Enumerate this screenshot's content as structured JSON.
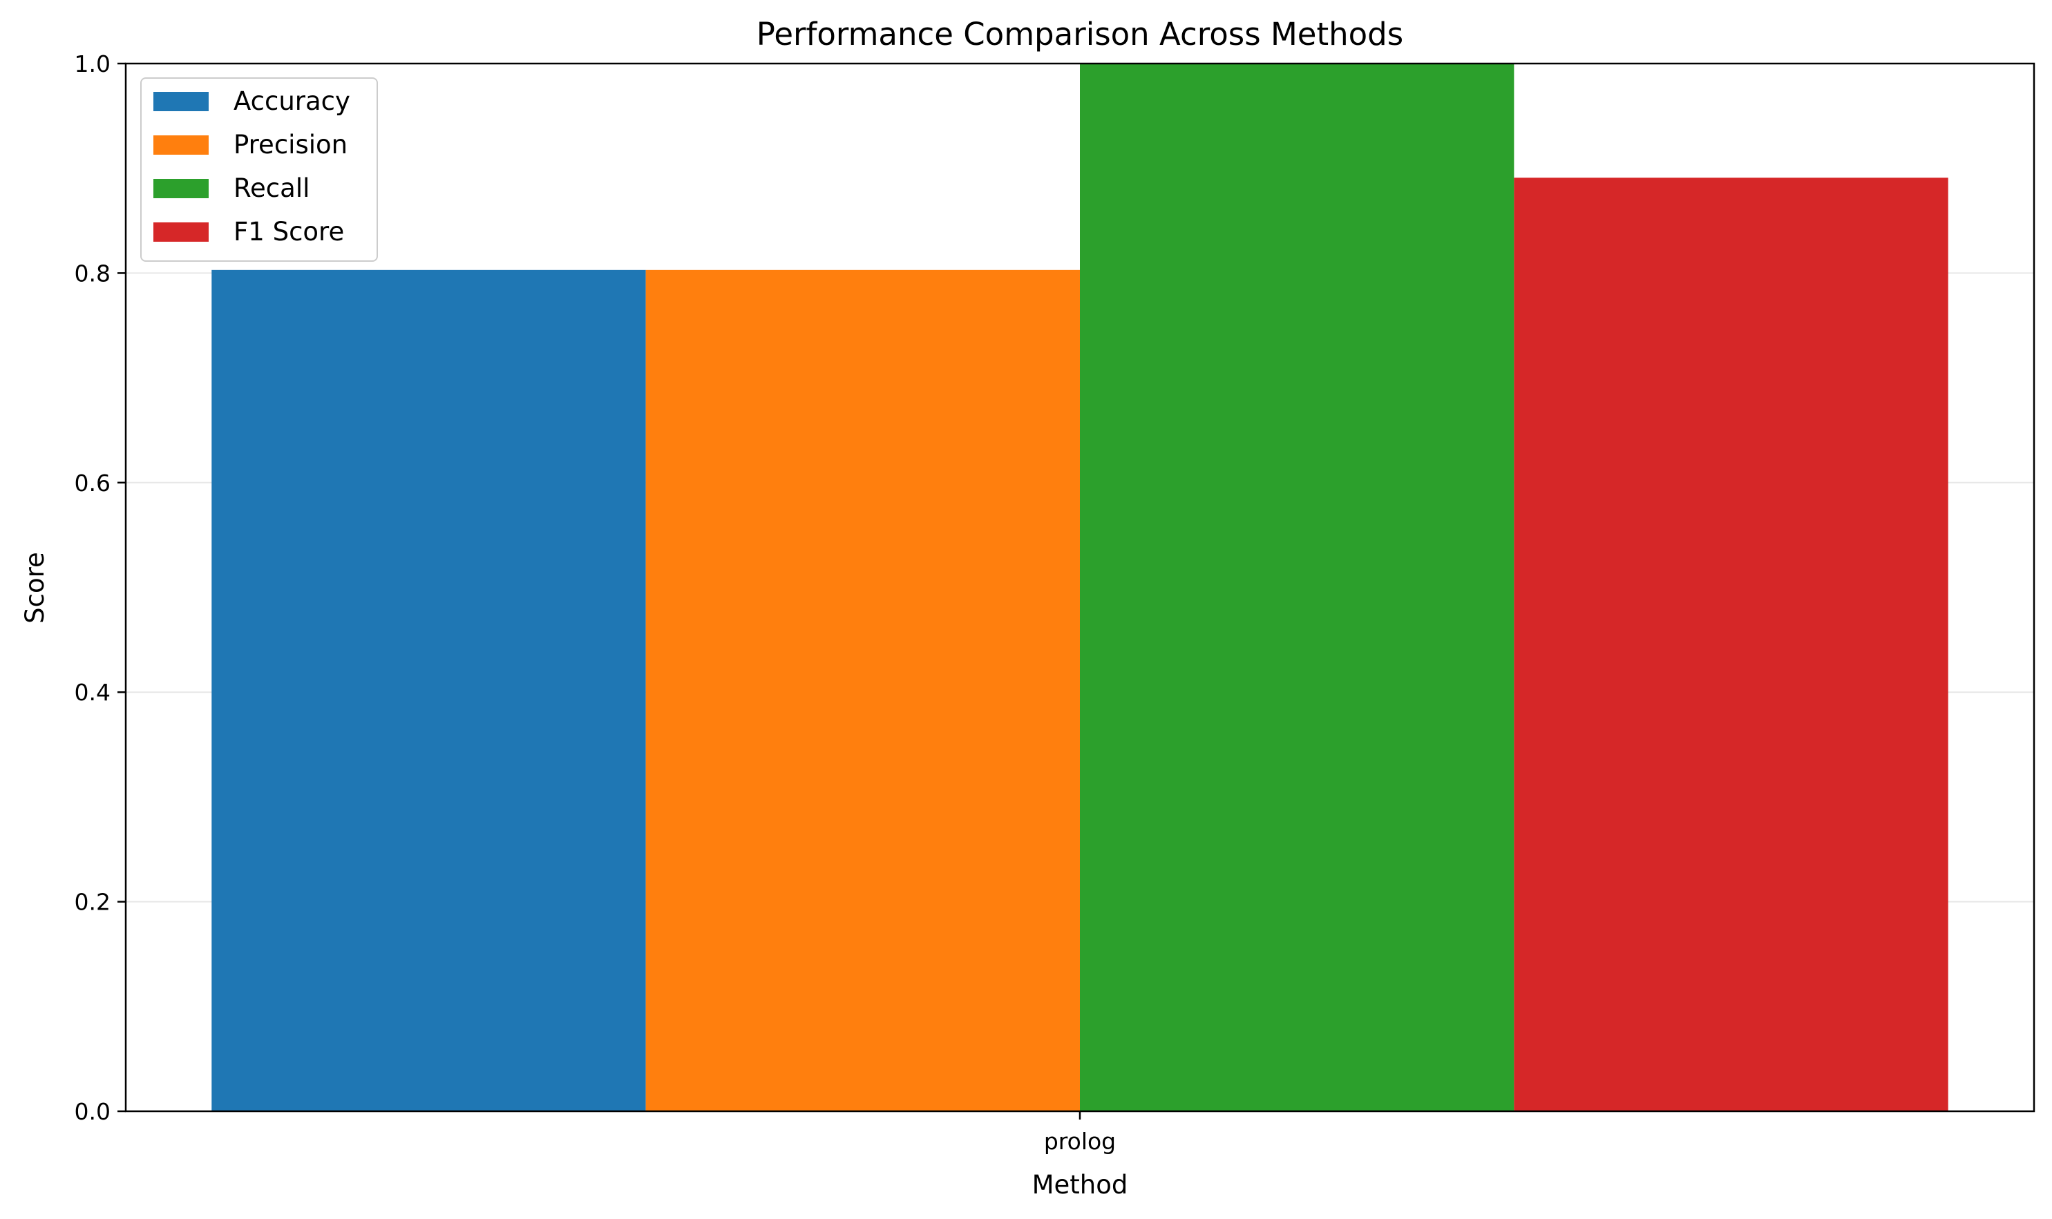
{
  "chart_data": {
    "type": "bar",
    "title": "Performance Comparison Across Methods",
    "xlabel": "Method",
    "ylabel": "Score",
    "categories": [
      "prolog"
    ],
    "series": [
      {
        "name": "Accuracy",
        "values": [
          0.803
        ],
        "color": "#1f77b4"
      },
      {
        "name": "Precision",
        "values": [
          0.803
        ],
        "color": "#ff7f0e"
      },
      {
        "name": "Recall",
        "values": [
          1.0
        ],
        "color": "#2ca02c"
      },
      {
        "name": "F1 Score",
        "values": [
          0.891
        ],
        "color": "#d62728"
      }
    ],
    "ylim": [
      0,
      1.0
    ],
    "yticks": [
      "0.0",
      "0.2",
      "0.4",
      "0.6",
      "0.8",
      "1.0"
    ],
    "grid": "y",
    "legend_position": "top-left"
  }
}
